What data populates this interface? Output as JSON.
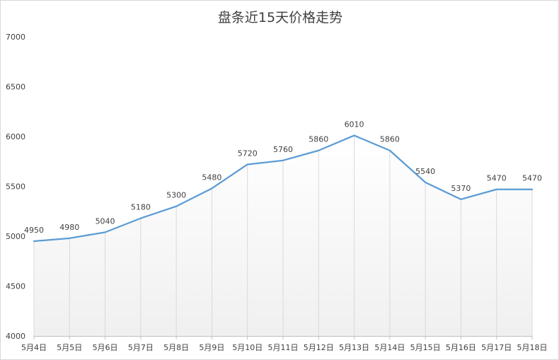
{
  "chart_data": {
    "type": "line",
    "title": "盘条近15天价格走势",
    "categories": [
      "5月4日",
      "5月5日",
      "5月6日",
      "5月7日",
      "5月8日",
      "5月9日",
      "5月10日",
      "5月11日",
      "5月12日",
      "5月13日",
      "5月14日",
      "5月15日",
      "5月16日",
      "5月17日",
      "5月18日"
    ],
    "values": [
      4950,
      4980,
      5040,
      5180,
      5300,
      5480,
      5720,
      5760,
      5860,
      6010,
      5860,
      5540,
      5370,
      5470,
      5470
    ],
    "ylim": [
      4000,
      7000
    ],
    "yticks": [
      4000,
      4500,
      5000,
      5500,
      6000,
      6500,
      7000
    ],
    "grid": "vertical",
    "legend": "none",
    "line_color": "#5b9bd5",
    "area_gradient_top": "#ffffff",
    "area_gradient_bottom": "#f0f0f0"
  }
}
